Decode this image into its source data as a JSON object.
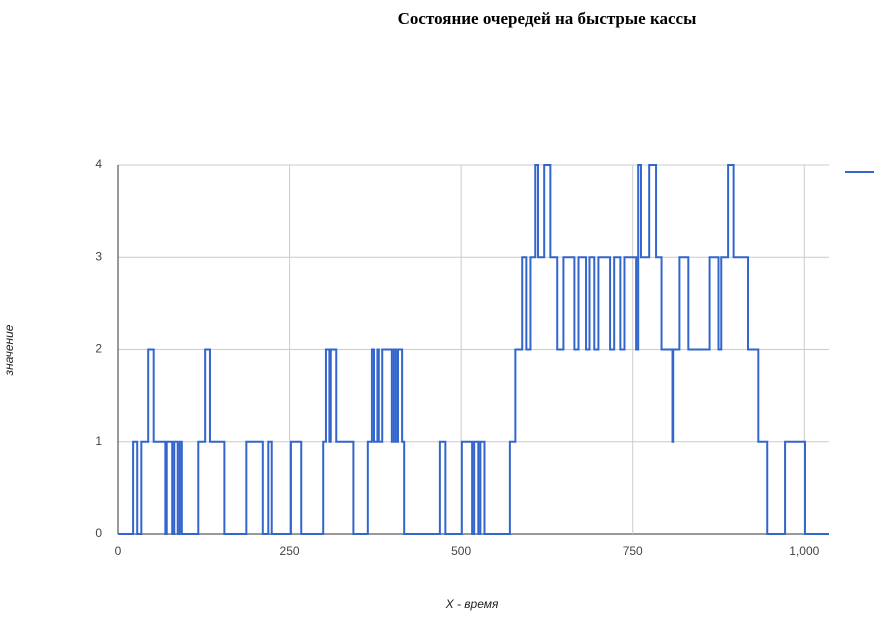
{
  "chart_data": {
    "type": "line",
    "step": true,
    "title": "Состояние очередей на быстрые кассы",
    "x_label": "X - время",
    "y_label": "значение",
    "x": [
      0,
      22,
      28,
      34,
      44,
      52,
      69,
      71,
      79,
      82,
      87,
      90,
      93,
      117,
      127,
      134,
      155,
      187,
      211,
      219,
      224,
      252,
      267,
      299,
      303,
      308,
      310,
      318,
      343,
      364,
      370,
      373,
      378,
      380,
      385,
      399,
      402,
      405,
      408,
      414,
      417,
      469,
      477,
      501,
      516,
      519,
      525,
      528,
      534,
      571,
      579,
      589,
      595,
      601,
      608,
      612,
      621,
      630,
      640,
      649,
      665,
      671,
      682,
      687,
      694,
      700,
      717,
      723,
      732,
      738,
      755,
      758,
      762,
      774,
      784,
      792,
      808,
      809,
      818,
      831,
      862,
      875,
      879,
      889,
      897,
      918,
      933,
      946,
      972,
      1001,
      1016
    ],
    "series": [
      {
        "color": "#3366cc",
        "values": [
          0,
          1,
          0,
          1,
          2,
          1,
          0,
          1,
          0,
          1,
          0,
          1,
          0,
          1,
          2,
          1,
          0,
          1,
          0,
          1,
          0,
          1,
          0,
          1,
          2,
          1,
          2,
          1,
          0,
          1,
          2,
          1,
          2,
          1,
          2,
          1,
          2,
          1,
          2,
          1,
          0,
          1,
          0,
          1,
          0,
          1,
          0,
          1,
          0,
          1,
          2,
          3,
          2,
          3,
          4,
          3,
          4,
          3,
          2,
          3,
          2,
          3,
          2,
          3,
          2,
          3,
          2,
          3,
          2,
          3,
          2,
          4,
          3,
          4,
          3,
          2,
          1,
          2,
          3,
          2,
          3,
          2,
          3,
          4,
          3,
          2,
          1,
          0,
          1,
          0,
          0
        ]
      }
    ],
    "xlim": [
      0,
      1036
    ],
    "ylim": [
      0,
      4
    ],
    "xticks": [
      0,
      250,
      500,
      750,
      {
        "value": 1000,
        "label": "1,000"
      }
    ],
    "yticks": [
      0,
      1,
      2,
      3,
      4
    ],
    "grid": true
  }
}
